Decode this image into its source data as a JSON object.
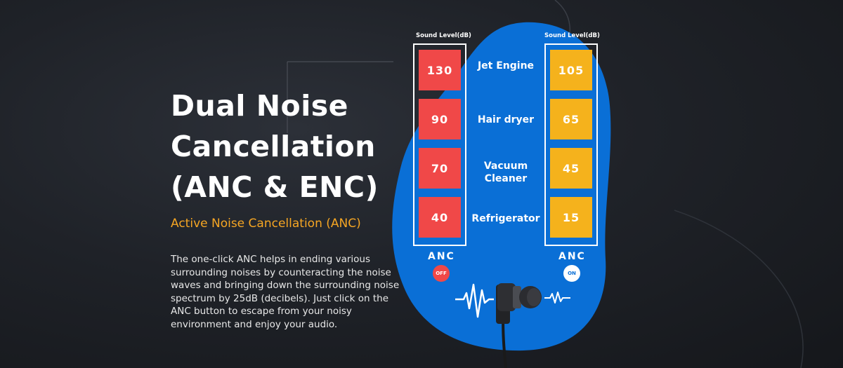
{
  "headline": {
    "title": "Dual Noise\nCancellation\n(ANC & ENC)",
    "subtitle": "Active Noise Cancellation (ANC)",
    "description": "The one-click ANC helps in ending various\nsurrounding noises by counteracting the noise\n waves and bringing down the surrounding noise\n spectrum by 25dB (decibels). Just click on the\n ANC button to escape from your noisy\nenvironment and enjoy your audio."
  },
  "comparison": {
    "column_label": "Sound Level(dB)",
    "off_levels": [
      "130",
      "90",
      "70",
      "40"
    ],
    "on_levels": [
      "105",
      "65",
      "45",
      "15"
    ],
    "devices": [
      "Jet Engine",
      "Hair dryer",
      "Vacuum\nCleaner",
      "Refrigerator"
    ],
    "anc_label": "ANC",
    "off_badge": "OFF",
    "on_badge": "ON"
  },
  "colors": {
    "blob": "#0a6fd6",
    "off": "#f04848",
    "on": "#f5b21c",
    "subtitle": "#f6a623"
  },
  "icons": [
    "earphone-icon",
    "sound-wave-icon"
  ]
}
